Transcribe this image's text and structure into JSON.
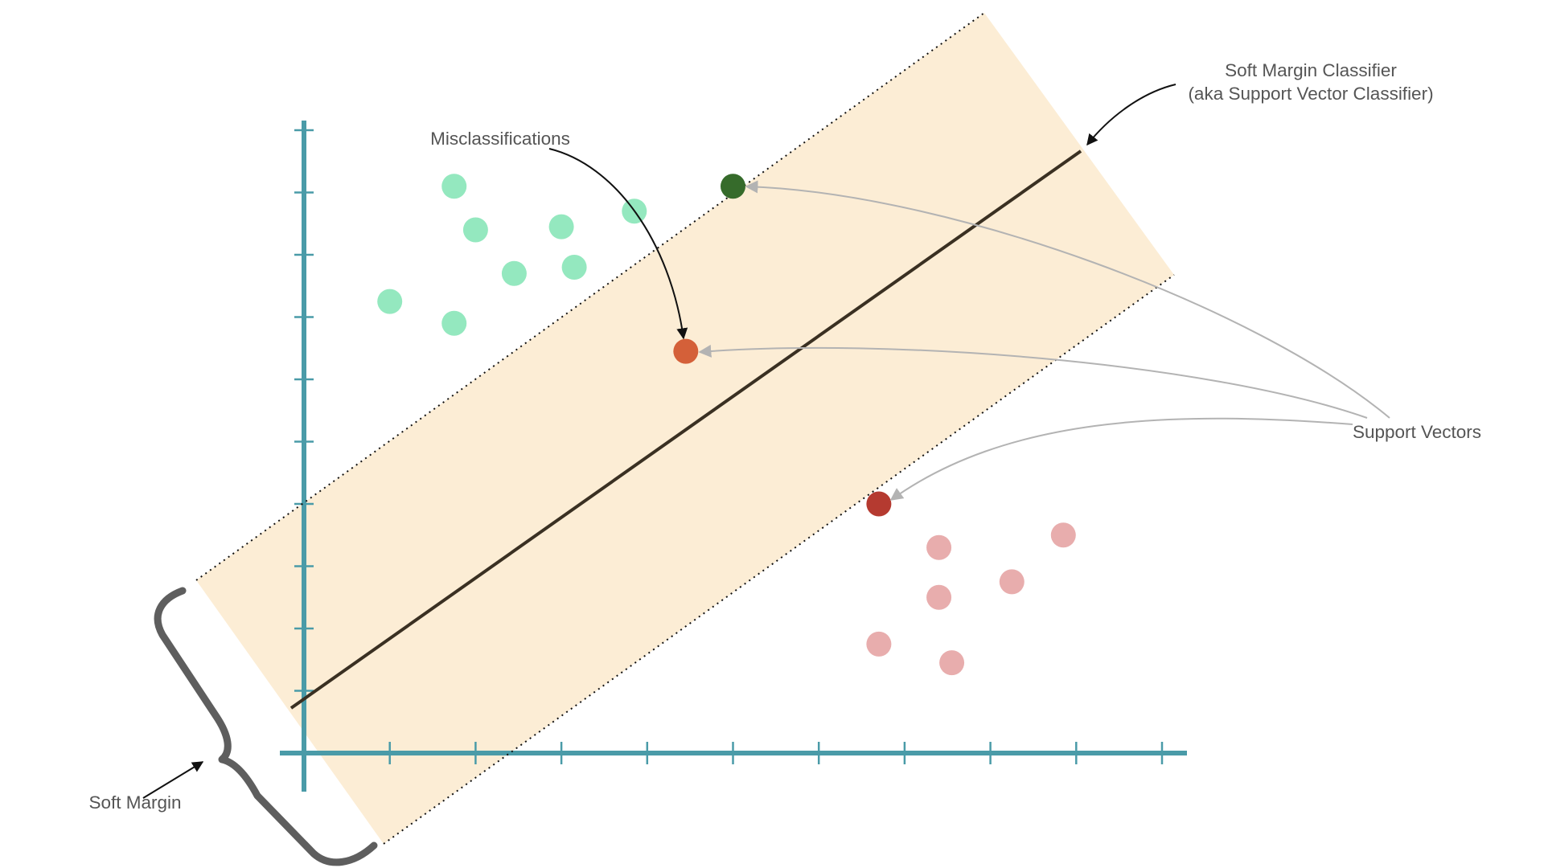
{
  "labels": {
    "misclassifications": "Misclassifications",
    "classifier_line1": "Soft Margin Classifier",
    "classifier_line2": "(aka Support Vector Classifier)",
    "support_vectors": "Support Vectors",
    "soft_margin": "Soft Margin"
  },
  "colors": {
    "axis": "#4a9ba8",
    "margin_band": "#fcedd5",
    "classifier_line": "#3a3022",
    "green_class": "#94e8bf",
    "green_support_vector": "#366b2b",
    "red_class": "#e8adad",
    "red_support_vector": "#b53a30",
    "misclassified_point": "#d46039",
    "support_vector_arrows": "#b3b3b3",
    "label_arrows": "#111111",
    "brace": "#5e5e5e",
    "text": "#555555"
  },
  "chart_data": {
    "type": "scatter",
    "x_ticks": 10,
    "y_ticks": 10,
    "series": [
      {
        "class": "green",
        "points": [
          [
            1.75,
            9.1
          ],
          [
            2.0,
            8.4
          ],
          [
            3.0,
            8.45
          ],
          [
            3.85,
            8.7
          ],
          [
            2.45,
            7.7
          ],
          [
            3.15,
            7.8
          ],
          [
            1.0,
            7.25
          ],
          [
            1.75,
            6.9
          ]
        ]
      },
      {
        "class": "red",
        "points": [
          [
            7.4,
            3.3
          ],
          [
            8.85,
            3.5
          ],
          [
            8.25,
            2.75
          ],
          [
            7.4,
            2.5
          ],
          [
            6.7,
            1.75
          ],
          [
            7.55,
            1.45
          ]
        ]
      }
    ],
    "support_vectors": [
      {
        "class": "green",
        "point": [
          5.0,
          9.1
        ]
      },
      {
        "class": "red",
        "point": [
          6.7,
          4.0
        ]
      },
      {
        "class": "misclassified",
        "point": [
          4.45,
          6.45
        ]
      }
    ],
    "classifier": {
      "from": [
        -0.15,
        0.8
      ],
      "to": [
        9.0,
        9.7
      ]
    }
  }
}
